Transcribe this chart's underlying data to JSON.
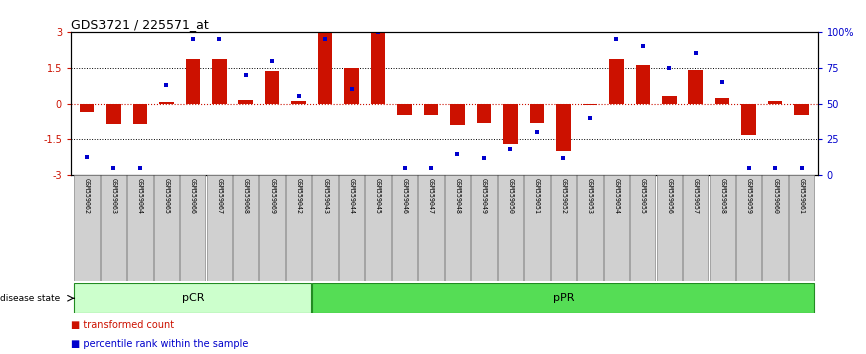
{
  "title": "GDS3721 / 225571_at",
  "samples": [
    "GSM559062",
    "GSM559063",
    "GSM559064",
    "GSM559065",
    "GSM559066",
    "GSM559067",
    "GSM559068",
    "GSM559069",
    "GSM559042",
    "GSM559043",
    "GSM559044",
    "GSM559045",
    "GSM559046",
    "GSM559047",
    "GSM559048",
    "GSM559049",
    "GSM559050",
    "GSM559051",
    "GSM559052",
    "GSM559053",
    "GSM559054",
    "GSM559055",
    "GSM559056",
    "GSM559057",
    "GSM559058",
    "GSM559059",
    "GSM559060",
    "GSM559061"
  ],
  "bar_values": [
    -0.35,
    -0.85,
    -0.85,
    0.05,
    1.85,
    1.85,
    0.15,
    1.35,
    0.1,
    3.0,
    1.5,
    3.0,
    -0.5,
    -0.5,
    -0.9,
    -0.8,
    -1.7,
    -0.8,
    -2.0,
    -0.05,
    1.85,
    1.6,
    0.3,
    1.4,
    0.25,
    -1.3,
    0.1,
    -0.5
  ],
  "dot_pct": [
    13,
    5,
    5,
    63,
    95,
    95,
    70,
    80,
    55,
    95,
    60,
    100,
    5,
    5,
    15,
    12,
    18,
    30,
    12,
    40,
    95,
    90,
    75,
    85,
    65,
    5,
    5,
    5
  ],
  "pCR_count": 9,
  "pPR_count": 19,
  "ylim": [
    -3,
    3
  ],
  "yticks_left": [
    -3,
    -1.5,
    0,
    1.5,
    3
  ],
  "yticks_left_labels": [
    "-3",
    "-1.5",
    "0",
    "1.5",
    "3"
  ],
  "yticks_right_pct": [
    0,
    25,
    50,
    75,
    100
  ],
  "yticks_right_labels": [
    "0",
    "25",
    "50",
    "75",
    "100%"
  ],
  "bar_color": "#cc1100",
  "dot_color": "#0000cc",
  "pCR_color": "#ccffcc",
  "pPR_color": "#55dd55",
  "label_color_left": "#cc1100",
  "label_color_right": "#0000cc",
  "title_fontsize": 9,
  "tick_fontsize": 7,
  "sample_fontsize": 4.8,
  "legend_fontsize": 7
}
